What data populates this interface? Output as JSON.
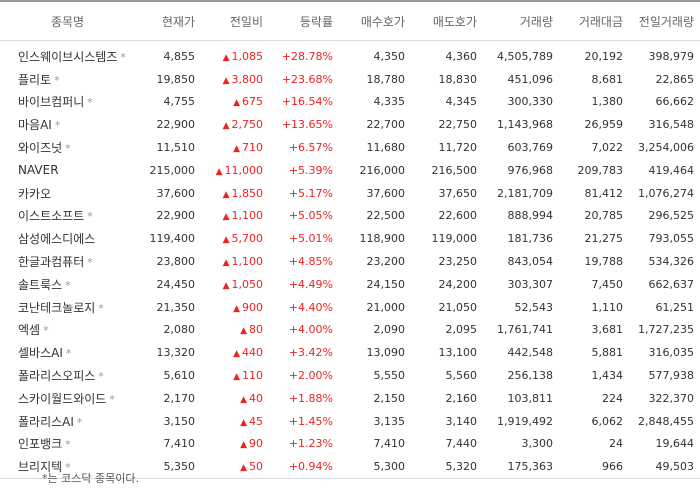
{
  "headers": [
    "종목명",
    "현재가",
    "전일비",
    "등락률",
    "매수호가",
    "매도호가",
    "거래량",
    "거래대금",
    "전일거래량"
  ],
  "up_color": "#ee2222",
  "kosdaq_mark": "*",
  "rows": [
    {
      "name": "인스웨이브시스템즈",
      "star": "*",
      "price": "4,855",
      "change": "1,085",
      "rate": "+28.78%",
      "bid": "4,350",
      "ask": "4,360",
      "volume": "4,505,789",
      "amount": "20,192",
      "prev_volume": "398,979"
    },
    {
      "name": "플리토",
      "star": "*",
      "price": "19,850",
      "change": "3,800",
      "rate": "+23.68%",
      "bid": "18,780",
      "ask": "18,830",
      "volume": "451,096",
      "amount": "8,681",
      "prev_volume": "22,865"
    },
    {
      "name": "바이브컴퍼니",
      "star": "*",
      "price": "4,755",
      "change": "675",
      "rate": "+16.54%",
      "bid": "4,335",
      "ask": "4,345",
      "volume": "300,330",
      "amount": "1,380",
      "prev_volume": "66,662"
    },
    {
      "name": "마음AI",
      "star": "*",
      "price": "22,900",
      "change": "2,750",
      "rate": "+13.65%",
      "bid": "22,700",
      "ask": "22,750",
      "volume": "1,143,968",
      "amount": "26,959",
      "prev_volume": "316,548"
    },
    {
      "name": "와이즈넛",
      "star": "*",
      "price": "11,510",
      "change": "710",
      "rate": "+6.57%",
      "bid": "11,680",
      "ask": "11,720",
      "volume": "603,769",
      "amount": "7,022",
      "prev_volume": "3,254,006"
    },
    {
      "name": "NAVER",
      "star": "",
      "price": "215,000",
      "change": "11,000",
      "rate": "+5.39%",
      "bid": "216,000",
      "ask": "216,500",
      "volume": "976,968",
      "amount": "209,783",
      "prev_volume": "419,464"
    },
    {
      "name": "카카오",
      "star": "",
      "price": "37,600",
      "change": "1,850",
      "rate": "+5.17%",
      "bid": "37,600",
      "ask": "37,650",
      "volume": "2,181,709",
      "amount": "81,412",
      "prev_volume": "1,076,274"
    },
    {
      "name": "이스트소프트",
      "star": "*",
      "price": "22,900",
      "change": "1,100",
      "rate": "+5.05%",
      "bid": "22,500",
      "ask": "22,600",
      "volume": "888,994",
      "amount": "20,785",
      "prev_volume": "296,525"
    },
    {
      "name": "삼성에스디에스",
      "star": "",
      "price": "119,400",
      "change": "5,700",
      "rate": "+5.01%",
      "bid": "118,900",
      "ask": "119,000",
      "volume": "181,736",
      "amount": "21,275",
      "prev_volume": "793,055"
    },
    {
      "name": "한글과컴퓨터",
      "star": "*",
      "price": "23,800",
      "change": "1,100",
      "rate": "+4.85%",
      "bid": "23,200",
      "ask": "23,250",
      "volume": "843,054",
      "amount": "19,788",
      "prev_volume": "534,326"
    },
    {
      "name": "솔트룩스",
      "star": "*",
      "price": "24,450",
      "change": "1,050",
      "rate": "+4.49%",
      "bid": "24,150",
      "ask": "24,200",
      "volume": "303,307",
      "amount": "7,450",
      "prev_volume": "662,637"
    },
    {
      "name": "코난테크놀로지",
      "star": "*",
      "price": "21,350",
      "change": "900",
      "rate": "+4.40%",
      "bid": "21,000",
      "ask": "21,050",
      "volume": "52,543",
      "amount": "1,110",
      "prev_volume": "61,251"
    },
    {
      "name": "엑셈",
      "star": "*",
      "price": "2,080",
      "change": "80",
      "rate": "+4.00%",
      "bid": "2,090",
      "ask": "2,095",
      "volume": "1,761,741",
      "amount": "3,681",
      "prev_volume": "1,727,235"
    },
    {
      "name": "셀바스AI",
      "star": "*",
      "price": "13,320",
      "change": "440",
      "rate": "+3.42%",
      "bid": "13,090",
      "ask": "13,100",
      "volume": "442,548",
      "amount": "5,881",
      "prev_volume": "316,035"
    },
    {
      "name": "폴라리스오피스",
      "star": "*",
      "price": "5,610",
      "change": "110",
      "rate": "+2.00%",
      "bid": "5,550",
      "ask": "5,560",
      "volume": "256,138",
      "amount": "1,434",
      "prev_volume": "577,938"
    },
    {
      "name": "스카이월드와이드",
      "star": "*",
      "price": "2,170",
      "change": "40",
      "rate": "+1.88%",
      "bid": "2,150",
      "ask": "2,160",
      "volume": "103,811",
      "amount": "224",
      "prev_volume": "322,370"
    },
    {
      "name": "폴라리스AI",
      "star": "*",
      "price": "3,150",
      "change": "45",
      "rate": "+1.45%",
      "bid": "3,135",
      "ask": "3,140",
      "volume": "1,919,492",
      "amount": "6,062",
      "prev_volume": "2,848,455"
    },
    {
      "name": "인포뱅크",
      "star": "*",
      "price": "7,410",
      "change": "90",
      "rate": "+1.23%",
      "bid": "7,410",
      "ask": "7,440",
      "volume": "3,300",
      "amount": "24",
      "prev_volume": "19,644"
    },
    {
      "name": "브리지텍",
      "star": "*",
      "price": "5,350",
      "change": "50",
      "rate": "+0.94%",
      "bid": "5,300",
      "ask": "5,320",
      "volume": "175,363",
      "amount": "966",
      "prev_volume": "49,503"
    }
  ],
  "footnote": "*는 코스닥 종목이다."
}
